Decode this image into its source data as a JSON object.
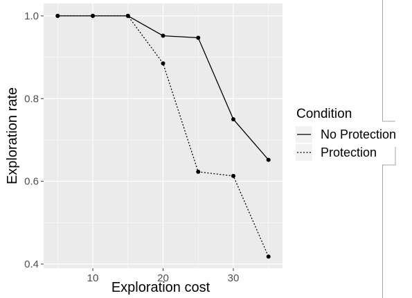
{
  "chart_data": {
    "type": "line",
    "xlabel": "Exploration cost",
    "ylabel": "Exploration rate",
    "xlim": [
      3,
      37
    ],
    "ylim": [
      0.39,
      1.03
    ],
    "x_ticks": [
      10,
      20,
      30
    ],
    "y_ticks": [
      0.4,
      0.6,
      0.8,
      1.0
    ],
    "y_tick_labels": [
      "0.4",
      "0.6",
      "0.8",
      "1.0"
    ],
    "x_tick_labels": [
      "10",
      "20",
      "30"
    ],
    "grid": true,
    "legend_position": "right",
    "legend_title": "Condition",
    "series": [
      {
        "name": "No Protection",
        "line_style": "solid",
        "x": [
          5,
          10,
          15,
          20,
          25,
          30,
          35
        ],
        "y": [
          1.0,
          1.0,
          1.0,
          0.952,
          0.947,
          0.75,
          0.652
        ]
      },
      {
        "name": "Protection",
        "line_style": "dotted",
        "x": [
          5,
          10,
          15,
          20,
          25,
          30,
          35
        ],
        "y": [
          1.0,
          1.0,
          1.0,
          0.885,
          0.623,
          0.613,
          0.418
        ]
      }
    ]
  },
  "colors": {
    "panel": "#ebebeb",
    "grid_major": "#ffffff",
    "line": "#000000",
    "point": "#000000"
  }
}
